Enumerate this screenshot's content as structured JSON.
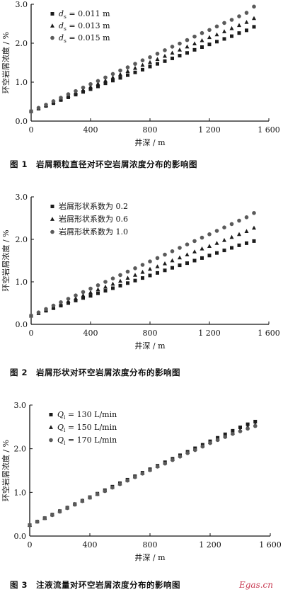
{
  "chart_data": [
    {
      "type": "scatter",
      "caption_num": "图 1",
      "caption_text": "岩屑颗粒直径对环空岩屑浓度分布的影响图",
      "xlabel": "井深 / m",
      "ylabel": "环空岩屑浓度 / %",
      "xlim": [
        0,
        1600
      ],
      "ylim": [
        0,
        3.0
      ],
      "xticks": [
        0,
        400,
        800,
        1200,
        1600
      ],
      "xtick_labels": [
        "0",
        "400",
        "800",
        "1 200",
        "1 600"
      ],
      "yticks": [
        0,
        1.0,
        2.0,
        3.0
      ],
      "ytick_labels": [
        "0.0",
        "1.0",
        "2.0",
        "3.0"
      ],
      "legend_position": "top-left",
      "x": [
        0,
        50,
        100,
        150,
        200,
        250,
        300,
        350,
        400,
        450,
        500,
        550,
        600,
        650,
        700,
        750,
        800,
        850,
        900,
        950,
        1000,
        1050,
        1100,
        1150,
        1200,
        1250,
        1300,
        1350,
        1400,
        1450,
        1500
      ],
      "series": [
        {
          "name": "ds = 0.011 m",
          "label_main": "d",
          "label_sub": "s",
          "label_rest": " = 0.011 m",
          "marker": "square",
          "values": [
            0.25,
            0.32,
            0.39,
            0.46,
            0.54,
            0.61,
            0.68,
            0.75,
            0.82,
            0.89,
            0.97,
            1.04,
            1.11,
            1.18,
            1.25,
            1.32,
            1.4,
            1.47,
            1.54,
            1.61,
            1.68,
            1.75,
            1.83,
            1.9,
            1.97,
            2.04,
            2.11,
            2.18,
            2.26,
            2.33,
            2.42
          ]
        },
        {
          "name": "ds = 0.013 m",
          "label_main": "d",
          "label_sub": "s",
          "label_rest": " = 0.013 m",
          "marker": "triangle",
          "values": [
            0.25,
            0.33,
            0.41,
            0.49,
            0.57,
            0.65,
            0.73,
            0.8,
            0.88,
            0.96,
            1.04,
            1.12,
            1.2,
            1.28,
            1.36,
            1.44,
            1.51,
            1.59,
            1.67,
            1.75,
            1.83,
            1.91,
            1.99,
            2.07,
            2.15,
            2.22,
            2.3,
            2.38,
            2.46,
            2.54,
            2.64
          ]
        },
        {
          "name": "ds = 0.015 m",
          "label_main": "d",
          "label_sub": "s",
          "label_rest": " = 0.015 m",
          "marker": "circle",
          "values": [
            0.25,
            0.34,
            0.42,
            0.51,
            0.6,
            0.69,
            0.77,
            0.86,
            0.95,
            1.03,
            1.12,
            1.21,
            1.3,
            1.38,
            1.47,
            1.56,
            1.64,
            1.73,
            1.82,
            1.91,
            1.99,
            2.08,
            2.17,
            2.26,
            2.34,
            2.43,
            2.52,
            2.6,
            2.69,
            2.78,
            2.94
          ]
        }
      ]
    },
    {
      "type": "scatter",
      "caption_num": "图 2",
      "caption_text": "岩屑形状对环空岩屑浓度分布的影响图",
      "xlabel": "井深 / m",
      "ylabel": "环空岩屑浓度 / %",
      "xlim": [
        0,
        1600
      ],
      "ylim": [
        0,
        3.0
      ],
      "xticks": [
        0,
        400,
        800,
        1200,
        1600
      ],
      "xtick_labels": [
        "0",
        "400",
        "800",
        "1 200",
        "1 600"
      ],
      "yticks": [
        0,
        1.0,
        2.0,
        3.0
      ],
      "ytick_labels": [
        "0.0",
        "1.0",
        "2.0",
        "3.0"
      ],
      "legend_position": "top-left",
      "x": [
        0,
        50,
        100,
        150,
        200,
        250,
        300,
        350,
        400,
        450,
        500,
        550,
        600,
        650,
        700,
        750,
        800,
        850,
        900,
        950,
        1000,
        1050,
        1100,
        1150,
        1200,
        1250,
        1300,
        1350,
        1400,
        1450,
        1500
      ],
      "series": [
        {
          "name": "岩屑形状系数为 0.2",
          "label_main": "岩屑形状系数为 0.2",
          "label_sub": "",
          "label_rest": "",
          "marker": "square",
          "values": [
            0.2,
            0.26,
            0.32,
            0.38,
            0.44,
            0.5,
            0.56,
            0.62,
            0.67,
            0.73,
            0.79,
            0.85,
            0.91,
            0.97,
            1.03,
            1.09,
            1.15,
            1.21,
            1.27,
            1.33,
            1.39,
            1.44,
            1.5,
            1.56,
            1.62,
            1.68,
            1.74,
            1.8,
            1.86,
            1.91,
            1.96
          ]
        },
        {
          "name": "岩屑形状系数为 0.6",
          "label_main": "岩屑形状系数为 0.6",
          "label_sub": "",
          "label_rest": "",
          "marker": "triangle",
          "values": [
            0.2,
            0.27,
            0.34,
            0.4,
            0.47,
            0.54,
            0.61,
            0.68,
            0.75,
            0.82,
            0.88,
            0.95,
            1.02,
            1.09,
            1.16,
            1.23,
            1.3,
            1.36,
            1.43,
            1.5,
            1.57,
            1.64,
            1.71,
            1.78,
            1.84,
            1.91,
            1.98,
            2.05,
            2.12,
            2.19,
            2.27
          ]
        },
        {
          "name": "岩屑形状系数为 1.0",
          "label_main": "岩屑形状系数为 1.0",
          "label_sub": "",
          "label_rest": "",
          "marker": "circle",
          "values": [
            0.2,
            0.28,
            0.36,
            0.44,
            0.52,
            0.6,
            0.68,
            0.76,
            0.84,
            0.92,
            1.0,
            1.08,
            1.16,
            1.24,
            1.32,
            1.4,
            1.48,
            1.56,
            1.64,
            1.72,
            1.8,
            1.88,
            1.96,
            2.04,
            2.12,
            2.2,
            2.28,
            2.36,
            2.44,
            2.52,
            2.62
          ]
        }
      ]
    },
    {
      "type": "scatter",
      "caption_num": "图 3",
      "caption_text": "注液流量对环空岩屑浓度分布的影响图",
      "xlabel": "井深 / m",
      "ylabel": "环空岩屑浓度 / %",
      "xlim": [
        0,
        1600
      ],
      "ylim": [
        0,
        3.0
      ],
      "xticks": [
        0,
        400,
        800,
        1200,
        1600
      ],
      "xtick_labels": [
        "0",
        "400",
        "800",
        "1 200",
        "1 600"
      ],
      "yticks": [
        0,
        1.0,
        2.0,
        3.0
      ],
      "ytick_labels": [
        "0.0",
        "1.0",
        "2.0",
        "3.0"
      ],
      "legend_position": "top-left",
      "x": [
        0,
        50,
        100,
        150,
        200,
        250,
        300,
        350,
        400,
        450,
        500,
        550,
        600,
        650,
        700,
        750,
        800,
        850,
        900,
        950,
        1000,
        1050,
        1100,
        1150,
        1200,
        1250,
        1300,
        1350,
        1400,
        1450,
        1500
      ],
      "series": [
        {
          "name": "Ql = 130 L/min",
          "label_main": "Q",
          "label_sub": "l",
          "label_rest": " = 130 L/min",
          "marker": "square",
          "values": [
            0.25,
            0.33,
            0.41,
            0.49,
            0.57,
            0.65,
            0.73,
            0.81,
            0.89,
            0.97,
            1.05,
            1.13,
            1.21,
            1.29,
            1.37,
            1.45,
            1.53,
            1.61,
            1.69,
            1.77,
            1.85,
            1.93,
            2.01,
            2.09,
            2.17,
            2.25,
            2.33,
            2.41,
            2.49,
            2.56,
            2.62
          ]
        },
        {
          "name": "Ql = 150 L/min",
          "label_main": "Q",
          "label_sub": "l",
          "label_rest": " = 150 L/min",
          "marker": "triangle",
          "values": [
            0.25,
            0.33,
            0.41,
            0.49,
            0.57,
            0.65,
            0.73,
            0.81,
            0.88,
            0.96,
            1.04,
            1.12,
            1.2,
            1.28,
            1.36,
            1.44,
            1.52,
            1.6,
            1.68,
            1.76,
            1.84,
            1.92,
            1.99,
            2.07,
            2.15,
            2.22,
            2.29,
            2.36,
            2.43,
            2.5,
            2.55
          ]
        },
        {
          "name": "Ql = 170 L/min",
          "label_main": "Q",
          "label_sub": "l",
          "label_rest": " = 170 L/min",
          "marker": "circle",
          "values": [
            0.25,
            0.33,
            0.41,
            0.48,
            0.56,
            0.64,
            0.72,
            0.8,
            0.88,
            0.96,
            1.03,
            1.11,
            1.19,
            1.27,
            1.35,
            1.43,
            1.51,
            1.59,
            1.66,
            1.74,
            1.82,
            1.9,
            1.97,
            2.05,
            2.13,
            2.2,
            2.27,
            2.34,
            2.4,
            2.46,
            2.52
          ]
        }
      ]
    }
  ],
  "watermark": "Egas.cn"
}
